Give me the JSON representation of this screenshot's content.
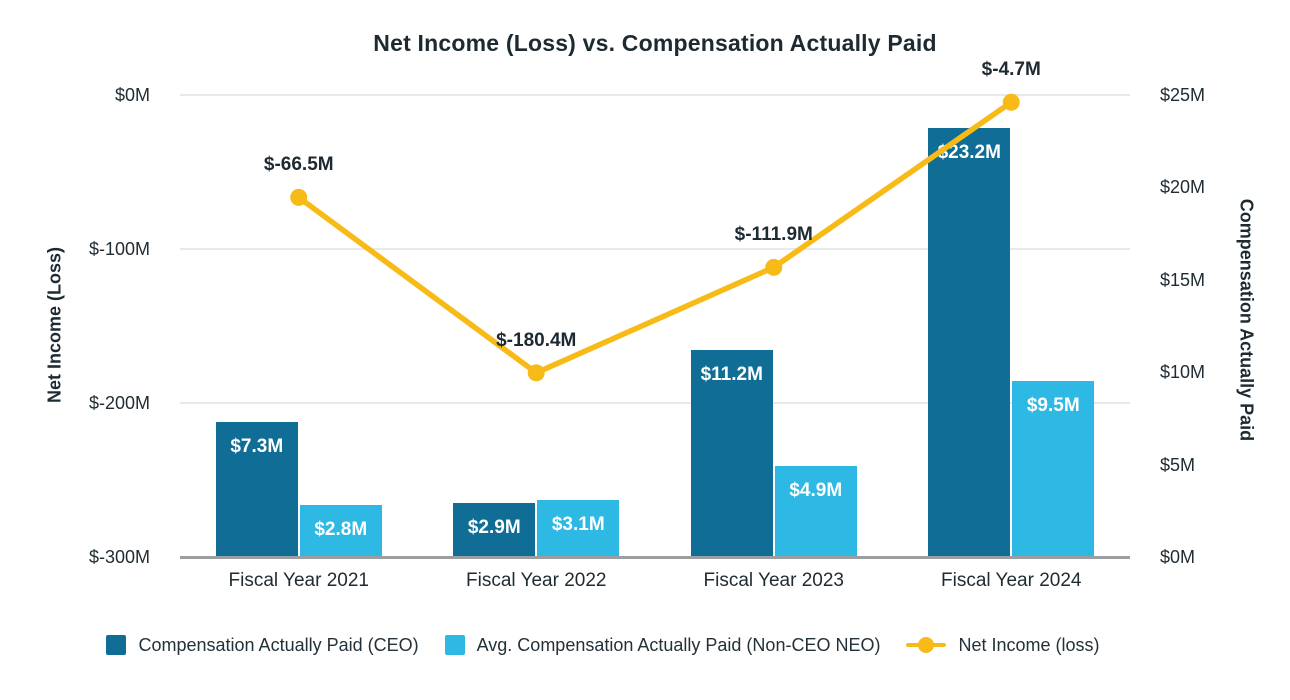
{
  "chart_data": {
    "type": "bar+line",
    "title": "Net Income (Loss) vs. Compensation Actually Paid",
    "categories": [
      "Fiscal Year 2021",
      "Fiscal Year 2022",
      "Fiscal Year 2023",
      "Fiscal Year 2024"
    ],
    "bar_series": [
      {
        "name": "Compensation Actually Paid (CEO)",
        "axis": "right",
        "color": "#106e96",
        "values": [
          7.3,
          2.9,
          11.2,
          23.2
        ],
        "labels": [
          "$7.3M",
          "$2.9M",
          "$11.2M",
          "$23.2M"
        ]
      },
      {
        "name": "Avg. Compensation Actually Paid (Non-CEO NEO)",
        "axis": "right",
        "color": "#2eb8e4",
        "values": [
          2.8,
          3.1,
          4.9,
          9.5
        ],
        "labels": [
          "$2.8M",
          "$3.1M",
          "$4.9M",
          "$9.5M"
        ]
      }
    ],
    "line_series": {
      "name": "Net Income (loss)",
      "axis": "left",
      "color": "#f8ba17",
      "values": [
        -66.5,
        -180.4,
        -111.9,
        -4.7
      ],
      "labels": [
        "$-66.5M",
        "$-180.4M",
        "$-111.9M",
        "$-4.7M"
      ]
    },
    "left_axis": {
      "label": "Net Income (Loss)",
      "min": -300,
      "max": 0,
      "tick_values": [
        0,
        -100,
        -200,
        -300
      ],
      "ticks": [
        "$0M",
        "$-100M",
        "$-200M",
        "$-300M"
      ]
    },
    "right_axis": {
      "label": "Compensation Actually Paid",
      "min": 0,
      "max": 25,
      "tick_values": [
        25,
        20,
        15,
        10,
        5,
        0
      ],
      "ticks": [
        "$25M",
        "$20M",
        "$15M",
        "$10M",
        "$5M",
        "$0M"
      ]
    },
    "grid": true,
    "legend_position": "bottom",
    "colors": {
      "grid": "#e8e9ea",
      "axis_line": "#9b9fa2",
      "text": "#1f2b32",
      "bar_label_text": "#ffffff"
    }
  }
}
